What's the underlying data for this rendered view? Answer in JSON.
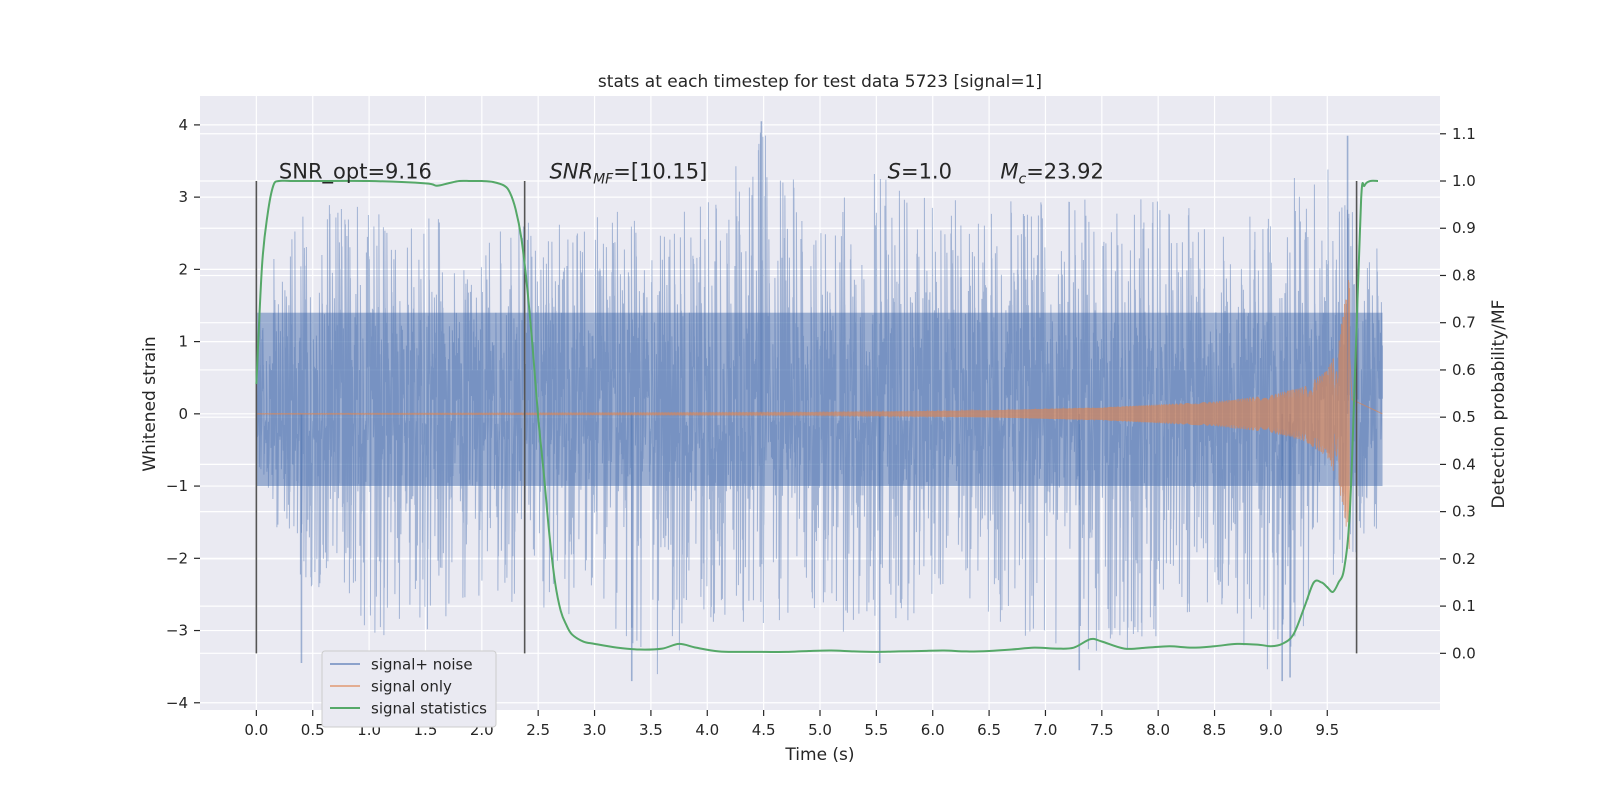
{
  "chart_data": {
    "type": "line",
    "title": "stats at each timestep for test data 5723 [signal=1]",
    "xlabel": "Time (s)",
    "ylabel_left": "Whitened strain",
    "ylabel_right": "Detection probability/MF",
    "xlim": [
      -0.5,
      10.5
    ],
    "ylim_left": [
      -4.1,
      4.4
    ],
    "ylim_right": [
      -0.12,
      1.18
    ],
    "x_ticks": [
      0.0,
      0.5,
      1.0,
      1.5,
      2.0,
      2.5,
      3.0,
      3.5,
      4.0,
      4.5,
      5.0,
      5.5,
      6.0,
      6.5,
      7.0,
      7.5,
      8.0,
      8.5,
      9.0,
      9.5
    ],
    "x_tick_labels": [
      "0.0",
      "0.5",
      "1.0",
      "1.5",
      "2.0",
      "2.5",
      "3.0",
      "3.5",
      "4.0",
      "4.5",
      "5.0",
      "5.5",
      "6.0",
      "6.5",
      "7.0",
      "7.5",
      "8.0",
      "8.5",
      "9.0",
      "9.5"
    ],
    "y_left_ticks": [
      -4,
      -3,
      -2,
      -1,
      0,
      1,
      2,
      3,
      4
    ],
    "y_left_tick_labels": [
      "−4",
      "−3",
      "−2",
      "−1",
      "0",
      "1",
      "2",
      "3",
      "4"
    ],
    "y_right_ticks": [
      0.0,
      0.1,
      0.2,
      0.3,
      0.4,
      0.5,
      0.6,
      0.7,
      0.8,
      0.9,
      1.0,
      1.1
    ],
    "y_right_tick_labels": [
      "0.0",
      "0.1",
      "0.2",
      "0.3",
      "0.4",
      "0.5",
      "0.6",
      "0.7",
      "0.8",
      "0.9",
      "1.0",
      "1.1"
    ],
    "grid": true,
    "legend_position": "lower-left",
    "colors": {
      "noise": "#4c72b0",
      "signal": "#dd8452",
      "statistics": "#55a868",
      "markers": "#555555",
      "plot_background": "#eaeaf2",
      "grid": "#ffffff"
    },
    "series": [
      {
        "name": "signal+ noise",
        "axis": "left",
        "x_range": [
          0.0,
          9.99
        ],
        "core_band": [
          -1.0,
          1.4
        ],
        "envelope": {
          "x": [
            0.0,
            0.5,
            1.0,
            1.5,
            2.0,
            2.5,
            3.0,
            3.5,
            4.0,
            4.5,
            5.0,
            5.5,
            6.0,
            6.5,
            7.0,
            7.5,
            8.0,
            8.5,
            9.0,
            9.5,
            9.99
          ],
          "upper": [
            2.0,
            2.9,
            2.9,
            2.7,
            2.8,
            2.7,
            2.9,
            2.7,
            3.0,
            4.0,
            2.7,
            3.4,
            3.0,
            3.0,
            3.0,
            3.0,
            3.1,
            2.7,
            3.0,
            3.8,
            2.2
          ],
          "lower": [
            -1.0,
            -2.6,
            -3.1,
            -3.0,
            -2.6,
            -2.7,
            -2.9,
            -3.7,
            -2.9,
            -2.9,
            -2.8,
            -3.4,
            -2.7,
            -2.9,
            -3.2,
            -3.6,
            -3.1,
            -2.8,
            -3.7,
            -2.5,
            -1.6
          ]
        },
        "extreme_spikes": [
          {
            "x": 4.48,
            "y": 4.05
          },
          {
            "x": 9.68,
            "y": 3.85
          },
          {
            "x": 5.53,
            "y": -3.45
          },
          {
            "x": 3.33,
            "y": -3.7
          },
          {
            "x": 9.1,
            "y": -3.7
          },
          {
            "x": 9.17,
            "y": -3.65
          },
          {
            "x": 7.3,
            "y": -3.55
          },
          {
            "x": 0.4,
            "y": -3.45
          }
        ]
      },
      {
        "name": "signal only",
        "axis": "left",
        "model": "chirp",
        "x_range": [
          0.0,
          9.99
        ],
        "merger_time": 9.7,
        "envelope": {
          "x": [
            0.0,
            5.0,
            6.5,
            7.5,
            8.5,
            9.0,
            9.3,
            9.5,
            9.6,
            9.65,
            9.7,
            9.72,
            9.99
          ],
          "amplitude": [
            0.005,
            0.02,
            0.05,
            0.09,
            0.17,
            0.26,
            0.38,
            0.6,
            0.95,
            1.5,
            1.98,
            0.5,
            0.0
          ]
        }
      },
      {
        "name": "signal statistics",
        "axis": "right",
        "x": [
          0.0,
          0.05,
          0.1,
          0.15,
          0.2,
          0.3,
          0.5,
          1.0,
          1.5,
          1.6,
          1.7,
          1.8,
          1.9,
          2.0,
          2.1,
          2.2,
          2.25,
          2.3,
          2.35,
          2.4,
          2.45,
          2.5,
          2.55,
          2.6,
          2.65,
          2.7,
          2.75,
          2.8,
          2.9,
          3.0,
          3.2,
          3.4,
          3.6,
          3.75,
          3.9,
          4.1,
          4.3,
          4.5,
          4.7,
          4.9,
          5.1,
          5.3,
          5.5,
          5.7,
          5.9,
          6.1,
          6.3,
          6.5,
          6.7,
          6.9,
          7.1,
          7.25,
          7.4,
          7.5,
          7.7,
          7.9,
          8.1,
          8.3,
          8.5,
          8.7,
          8.9,
          9.0,
          9.1,
          9.2,
          9.3,
          9.38,
          9.45,
          9.5,
          9.55,
          9.6,
          9.65,
          9.7,
          9.75,
          9.8,
          9.83,
          9.88,
          9.95
        ],
        "y": [
          0.57,
          0.82,
          0.93,
          0.99,
          1.0,
          1.0,
          1.0,
          1.0,
          0.995,
          0.99,
          0.995,
          1.0,
          1.0,
          1.0,
          0.998,
          0.99,
          0.975,
          0.94,
          0.88,
          0.78,
          0.65,
          0.5,
          0.38,
          0.25,
          0.15,
          0.09,
          0.06,
          0.04,
          0.025,
          0.02,
          0.012,
          0.008,
          0.01,
          0.02,
          0.012,
          0.004,
          0.003,
          0.003,
          0.003,
          0.005,
          0.006,
          0.004,
          0.003,
          0.004,
          0.005,
          0.006,
          0.004,
          0.005,
          0.008,
          0.012,
          0.01,
          0.012,
          0.03,
          0.025,
          0.01,
          0.012,
          0.015,
          0.012,
          0.015,
          0.02,
          0.018,
          0.015,
          0.02,
          0.04,
          0.1,
          0.15,
          0.15,
          0.14,
          0.13,
          0.15,
          0.18,
          0.3,
          0.62,
          0.96,
          0.99,
          1.0,
          1.0
        ]
      }
    ],
    "vertical_markers": {
      "x": [
        0.0,
        2.38,
        9.76
      ],
      "y_right_range": [
        0.0,
        1.0
      ]
    },
    "annotations": [
      {
        "text": "SNR_opt=9.16",
        "x": 0.2,
        "y_left": 3.2
      },
      {
        "text": "SNR_MF=[10.15]",
        "math": "SNR",
        "sub": "MF",
        "rest": "=[10.15]",
        "x": 2.6,
        "y_left": 3.2
      },
      {
        "text": "S=1.0",
        "math": "S",
        "sub": "",
        "rest": "=1.0",
        "x": 5.6,
        "y_left": 3.2
      },
      {
        "text": "M_c=23.92",
        "math": "M",
        "sub": "c",
        "rest": "=23.92",
        "x": 6.6,
        "y_left": 3.2
      }
    ]
  }
}
